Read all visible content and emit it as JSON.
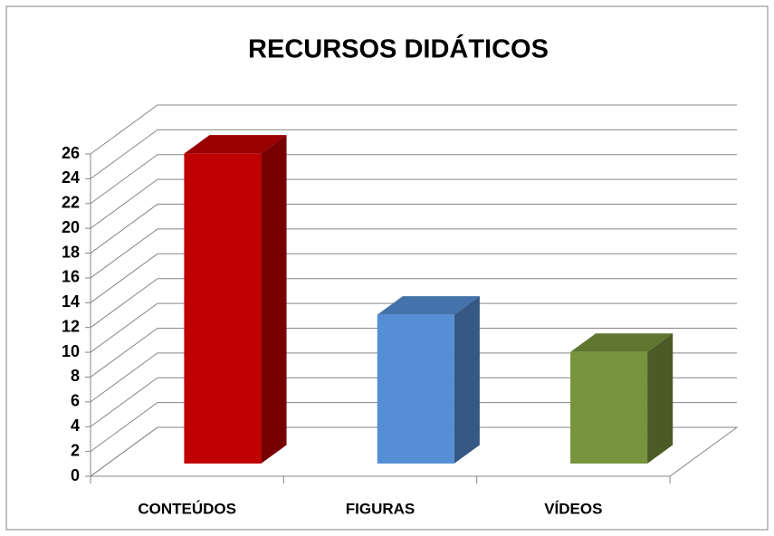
{
  "chart_data": {
    "type": "bar3d",
    "title": "RECURSOS DIDÁTICOS",
    "categories": [
      "CONTEÚDOS",
      "FIGURAS",
      "VÍDEOS"
    ],
    "values": [
      25,
      12,
      9
    ],
    "colors": [
      "#c00000",
      "#558ed5",
      "#77933c"
    ],
    "ylim": [
      0,
      26
    ],
    "yticks": [
      0,
      2,
      4,
      6,
      8,
      10,
      12,
      14,
      16,
      18,
      20,
      22,
      24,
      26
    ],
    "grid": true
  }
}
